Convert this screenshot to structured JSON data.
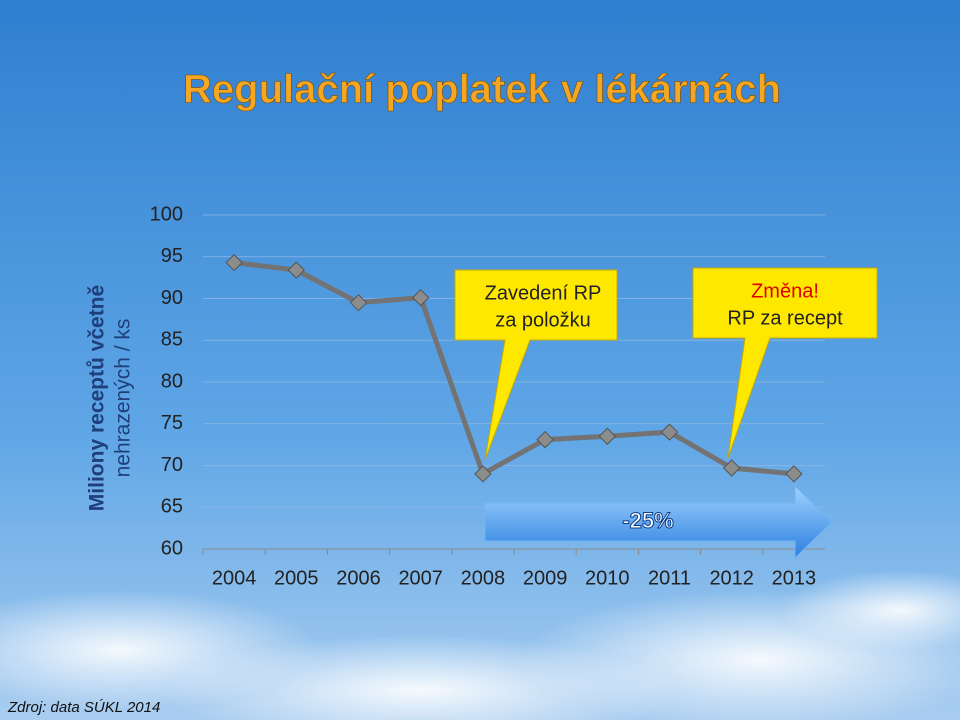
{
  "chart_data": {
    "type": "line",
    "title": "Regulační poplatek v lékárnách",
    "y_label": [
      "Miliony receptů včetně",
      "nehrazených / ks"
    ],
    "categories": [
      "2004",
      "2005",
      "2006",
      "2007",
      "2008",
      "2009",
      "2010",
      "2011",
      "2012",
      "2013"
    ],
    "series": [
      {
        "color": "#737373",
        "values": [
          94.3,
          93.4,
          89.5,
          90.1,
          69,
          73.1,
          73.5,
          74,
          69.7,
          69
        ]
      }
    ],
    "ylim": [
      60,
      100
    ],
    "yticks": [
      60,
      65,
      70,
      75,
      80,
      85,
      90,
      95,
      100
    ],
    "grid": true,
    "annotations": [
      {
        "lines": [
          "Zavedení RP",
          "za položku"
        ]
      },
      {
        "lines": [
          "Změna!",
          "RP za recept"
        ]
      },
      {
        "lines": [
          "-25%"
        ]
      }
    ],
    "source": "Zdroj: data SÚKL 2014"
  }
}
